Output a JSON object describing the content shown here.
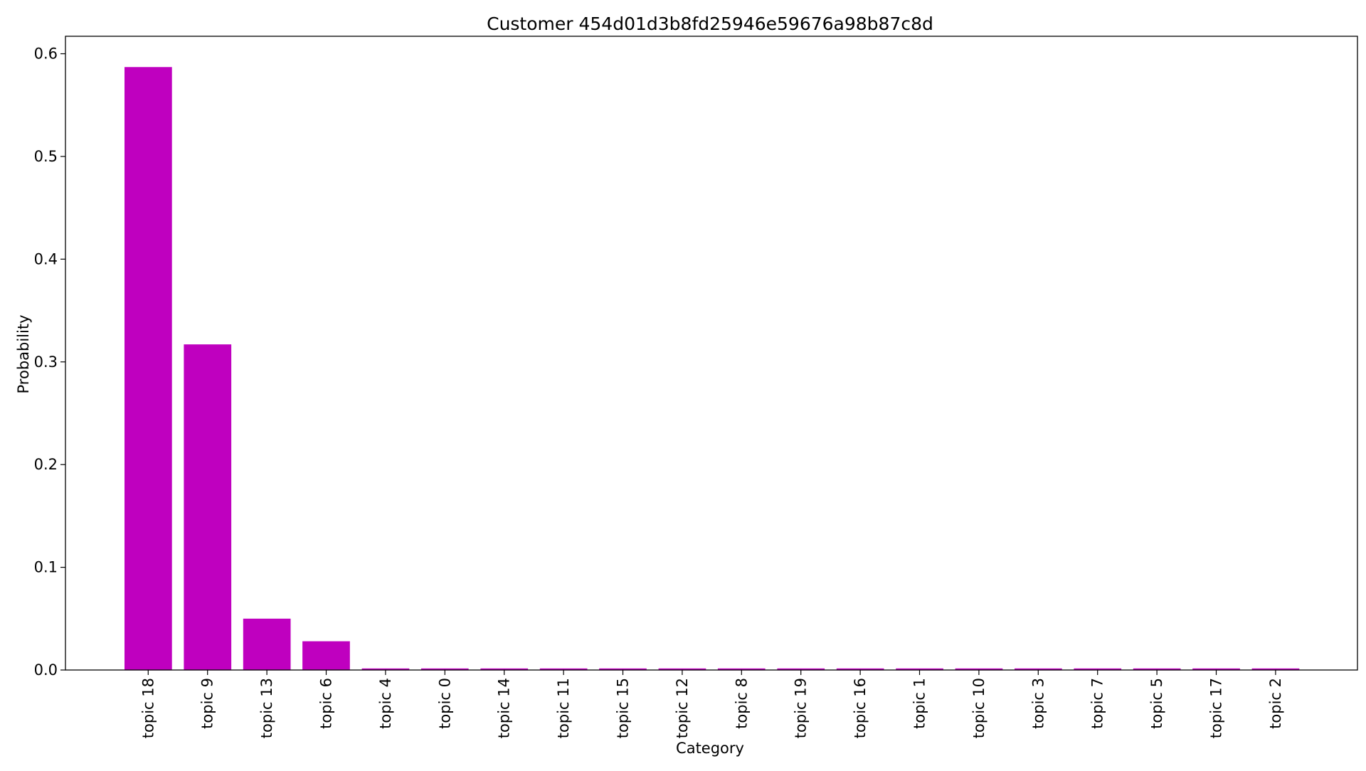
{
  "chart_data": {
    "type": "bar",
    "title": "Customer 454d01d3b8fd25946e59676a98b87c8d",
    "xlabel": "Category",
    "ylabel": "Probability",
    "categories": [
      "topic 18",
      "topic 9",
      "topic 13",
      "topic 6",
      "topic 4",
      "topic 0",
      "topic 14",
      "topic 11",
      "topic 15",
      "topic 12",
      "topic 8",
      "topic 19",
      "topic 16",
      "topic 1",
      "topic 10",
      "topic 3",
      "topic 7",
      "topic 5",
      "topic 17",
      "topic 2"
    ],
    "values": [
      0.587,
      0.317,
      0.05,
      0.028,
      0.0015,
      0.0015,
      0.0015,
      0.0015,
      0.0015,
      0.0015,
      0.0015,
      0.0015,
      0.0015,
      0.0015,
      0.0015,
      0.0015,
      0.0015,
      0.0015,
      0.0015,
      0.0015
    ],
    "ylim": [
      0,
      0.617
    ],
    "yticks": [
      "0.0",
      "0.1",
      "0.2",
      "0.3",
      "0.4",
      "0.5",
      "0.6"
    ],
    "bar_color": "#bf00bf",
    "grid": false,
    "legend": "none"
  }
}
